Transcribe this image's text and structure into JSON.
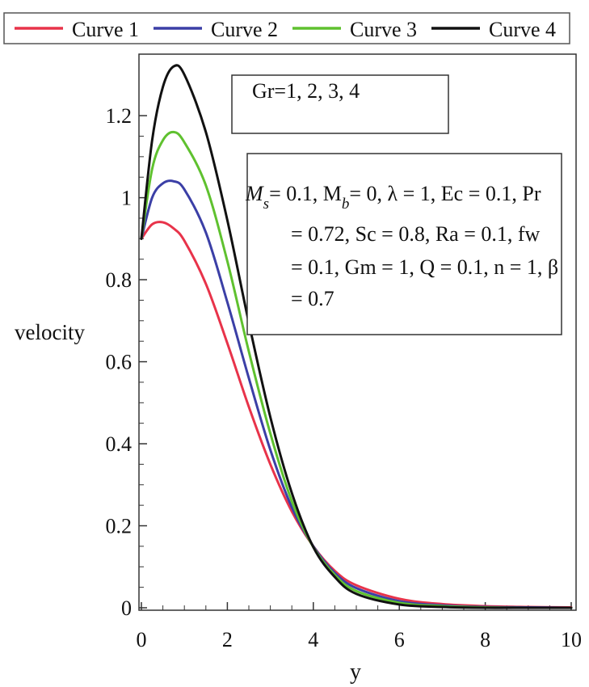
{
  "chart_data": {
    "type": "line",
    "xlabel": "y",
    "ylabel": "velocity",
    "xlim": [
      0,
      10
    ],
    "ylim": [
      0,
      1.35
    ],
    "xticks": [
      0,
      2,
      4,
      6,
      8,
      10
    ],
    "yticks": [
      0,
      0.2,
      0.4,
      0.6,
      0.8,
      1,
      1.2
    ],
    "x_tick_labels": [
      "0",
      "2",
      "4",
      "6",
      "8",
      "10"
    ],
    "y_tick_labels": [
      "0",
      "0.2",
      "0.4",
      "0.6",
      "0.8",
      "1",
      "1.2"
    ],
    "grid": false,
    "legend_position": "top",
    "series": [
      {
        "name": "Curve 1",
        "color": "#e8334a",
        "x": [
          0,
          0.25,
          0.5,
          0.75,
          1,
          1.5,
          2,
          2.5,
          3,
          3.5,
          4,
          4.5,
          5,
          6,
          7,
          8,
          9,
          10
        ],
        "y": [
          0.9,
          0.935,
          0.94,
          0.925,
          0.895,
          0.79,
          0.645,
          0.49,
          0.35,
          0.235,
          0.15,
          0.09,
          0.055,
          0.022,
          0.009,
          0.004,
          0.002,
          0.001
        ]
      },
      {
        "name": "Curve 2",
        "color": "#3b3fa6",
        "x": [
          0,
          0.25,
          0.5,
          0.75,
          1,
          1.5,
          2,
          2.5,
          3,
          3.5,
          4,
          4.5,
          5,
          6,
          7,
          8,
          9,
          10
        ],
        "y": [
          0.9,
          1.0,
          1.035,
          1.04,
          1.02,
          0.915,
          0.745,
          0.56,
          0.385,
          0.245,
          0.15,
          0.085,
          0.048,
          0.016,
          0.006,
          0.002,
          0.001,
          0.0
        ]
      },
      {
        "name": "Curve 3",
        "color": "#5fc12f",
        "x": [
          0,
          0.25,
          0.5,
          0.75,
          1,
          1.5,
          2,
          2.5,
          3,
          3.5,
          4,
          4.5,
          5,
          6,
          7,
          8,
          9,
          10
        ],
        "y": [
          0.9,
          1.07,
          1.14,
          1.16,
          1.135,
          1.03,
          0.845,
          0.625,
          0.425,
          0.26,
          0.148,
          0.08,
          0.041,
          0.012,
          0.004,
          0.001,
          0.0,
          0.0
        ]
      },
      {
        "name": "Curve 4",
        "color": "#111111",
        "x": [
          0,
          0.25,
          0.5,
          0.75,
          1,
          1.5,
          2,
          2.5,
          3,
          3.5,
          4,
          4.5,
          5,
          6,
          7,
          8,
          9,
          10
        ],
        "y": [
          0.9,
          1.14,
          1.27,
          1.32,
          1.3,
          1.16,
          0.945,
          0.695,
          0.465,
          0.28,
          0.148,
          0.075,
          0.034,
          0.008,
          0.002,
          0.0,
          0.0,
          0.0
        ]
      }
    ],
    "annotations": {
      "gr_text": "Gr=1, 2, 3, 4",
      "params_lines": [
        "= 0.1, M",
        "= 0, λ = 1, Ec = 0.1, Pr",
        "= 0.72, Sc = 0.8, Ra = 0.1, fw",
        "= 0.1, Gm = 1, Q = 0.1, n = 1, β",
        "= 0.7"
      ],
      "params_first_symbol": "M",
      "params_sub_s": "s",
      "params_sub_b": "b"
    }
  }
}
